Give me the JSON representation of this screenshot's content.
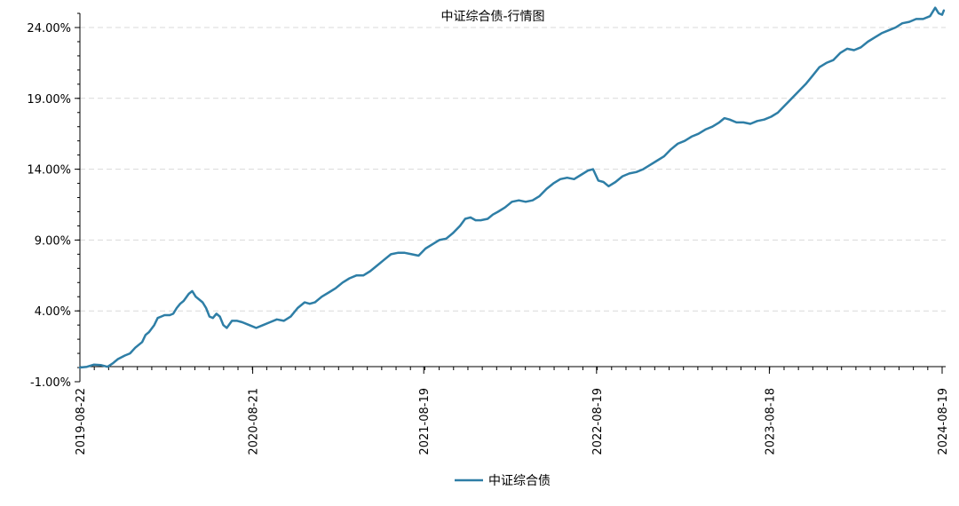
{
  "chart_data": {
    "type": "line",
    "title": "中证综合债-行情图",
    "xlabel": "",
    "ylabel": "",
    "ylim": [
      -1,
      25.5
    ],
    "y_ticks": [
      {
        "value": -1,
        "label": "-1.00%"
      },
      {
        "value": 4,
        "label": "4.00%"
      },
      {
        "value": 9,
        "label": "9.00%"
      },
      {
        "value": 14,
        "label": "14.00%"
      },
      {
        "value": 19,
        "label": "19.00%"
      },
      {
        "value": 24,
        "label": "24.00%"
      }
    ],
    "x_ticks": [
      {
        "value": 2019.64,
        "label": "2019-08-22"
      },
      {
        "value": 2020.64,
        "label": "2020-08-21"
      },
      {
        "value": 2021.63,
        "label": "2021-08-19"
      },
      {
        "value": 2022.63,
        "label": "2022-08-19"
      },
      {
        "value": 2023.63,
        "label": "2023-08-18"
      },
      {
        "value": 2024.63,
        "label": "2024-08-19"
      }
    ],
    "grid": {
      "y": true,
      "x": false
    },
    "legend": {
      "position": "bottom-center"
    },
    "series": [
      {
        "name": "中证综合债",
        "color": "#2e7ea6",
        "points": [
          [
            2019.64,
            0.0
          ],
          [
            2019.68,
            0.05
          ],
          [
            2019.72,
            0.2
          ],
          [
            2019.76,
            0.18
          ],
          [
            2019.8,
            0.05
          ],
          [
            2019.83,
            0.3
          ],
          [
            2019.86,
            0.6
          ],
          [
            2019.9,
            0.85
          ],
          [
            2019.93,
            1.0
          ],
          [
            2019.96,
            1.4
          ],
          [
            2020.0,
            1.8
          ],
          [
            2020.02,
            2.3
          ],
          [
            2020.04,
            2.5
          ],
          [
            2020.07,
            3.0
          ],
          [
            2020.09,
            3.5
          ],
          [
            2020.11,
            3.6
          ],
          [
            2020.13,
            3.7
          ],
          [
            2020.16,
            3.7
          ],
          [
            2020.18,
            3.8
          ],
          [
            2020.2,
            4.2
          ],
          [
            2020.22,
            4.5
          ],
          [
            2020.24,
            4.7
          ],
          [
            2020.27,
            5.2
          ],
          [
            2020.29,
            5.4
          ],
          [
            2020.31,
            5.0
          ],
          [
            2020.33,
            4.8
          ],
          [
            2020.35,
            4.6
          ],
          [
            2020.37,
            4.2
          ],
          [
            2020.39,
            3.6
          ],
          [
            2020.41,
            3.5
          ],
          [
            2020.43,
            3.8
          ],
          [
            2020.45,
            3.6
          ],
          [
            2020.47,
            3.0
          ],
          [
            2020.49,
            2.8
          ],
          [
            2020.52,
            3.3
          ],
          [
            2020.55,
            3.3
          ],
          [
            2020.58,
            3.2
          ],
          [
            2020.62,
            3.0
          ],
          [
            2020.66,
            2.8
          ],
          [
            2020.7,
            3.0
          ],
          [
            2020.74,
            3.2
          ],
          [
            2020.78,
            3.4
          ],
          [
            2020.82,
            3.3
          ],
          [
            2020.86,
            3.6
          ],
          [
            2020.9,
            4.2
          ],
          [
            2020.94,
            4.6
          ],
          [
            2020.97,
            4.5
          ],
          [
            2021.0,
            4.6
          ],
          [
            2021.04,
            5.0
          ],
          [
            2021.08,
            5.3
          ],
          [
            2021.12,
            5.6
          ],
          [
            2021.16,
            6.0
          ],
          [
            2021.2,
            6.3
          ],
          [
            2021.24,
            6.5
          ],
          [
            2021.28,
            6.5
          ],
          [
            2021.32,
            6.8
          ],
          [
            2021.36,
            7.2
          ],
          [
            2021.4,
            7.6
          ],
          [
            2021.44,
            8.0
          ],
          [
            2021.48,
            8.1
          ],
          [
            2021.52,
            8.1
          ],
          [
            2021.56,
            8.0
          ],
          [
            2021.6,
            7.9
          ],
          [
            2021.64,
            8.4
          ],
          [
            2021.68,
            8.7
          ],
          [
            2021.72,
            9.0
          ],
          [
            2021.76,
            9.1
          ],
          [
            2021.8,
            9.5
          ],
          [
            2021.84,
            10.0
          ],
          [
            2021.87,
            10.5
          ],
          [
            2021.9,
            10.6
          ],
          [
            2021.93,
            10.4
          ],
          [
            2021.96,
            10.4
          ],
          [
            2022.0,
            10.5
          ],
          [
            2022.03,
            10.8
          ],
          [
            2022.06,
            11.0
          ],
          [
            2022.1,
            11.3
          ],
          [
            2022.14,
            11.7
          ],
          [
            2022.18,
            11.8
          ],
          [
            2022.22,
            11.7
          ],
          [
            2022.26,
            11.8
          ],
          [
            2022.3,
            12.1
          ],
          [
            2022.34,
            12.6
          ],
          [
            2022.38,
            13.0
          ],
          [
            2022.42,
            13.3
          ],
          [
            2022.46,
            13.4
          ],
          [
            2022.5,
            13.3
          ],
          [
            2022.54,
            13.6
          ],
          [
            2022.58,
            13.9
          ],
          [
            2022.61,
            14.0
          ],
          [
            2022.64,
            13.2
          ],
          [
            2022.67,
            13.1
          ],
          [
            2022.7,
            12.8
          ],
          [
            2022.74,
            13.1
          ],
          [
            2022.78,
            13.5
          ],
          [
            2022.82,
            13.7
          ],
          [
            2022.86,
            13.8
          ],
          [
            2022.9,
            14.0
          ],
          [
            2022.94,
            14.3
          ],
          [
            2022.98,
            14.6
          ],
          [
            2023.02,
            14.9
          ],
          [
            2023.06,
            15.4
          ],
          [
            2023.1,
            15.8
          ],
          [
            2023.14,
            16.0
          ],
          [
            2023.18,
            16.3
          ],
          [
            2023.22,
            16.5
          ],
          [
            2023.26,
            16.8
          ],
          [
            2023.3,
            17.0
          ],
          [
            2023.34,
            17.3
          ],
          [
            2023.37,
            17.6
          ],
          [
            2023.4,
            17.5
          ],
          [
            2023.44,
            17.3
          ],
          [
            2023.48,
            17.3
          ],
          [
            2023.52,
            17.2
          ],
          [
            2023.56,
            17.4
          ],
          [
            2023.6,
            17.5
          ],
          [
            2023.64,
            17.7
          ],
          [
            2023.68,
            18.0
          ],
          [
            2023.72,
            18.5
          ],
          [
            2023.76,
            19.0
          ],
          [
            2023.8,
            19.5
          ],
          [
            2023.84,
            20.0
          ],
          [
            2023.88,
            20.6
          ],
          [
            2023.92,
            21.2
          ],
          [
            2023.96,
            21.5
          ],
          [
            2024.0,
            21.7
          ],
          [
            2024.04,
            22.2
          ],
          [
            2024.08,
            22.5
          ],
          [
            2024.12,
            22.4
          ],
          [
            2024.16,
            22.6
          ],
          [
            2024.2,
            23.0
          ],
          [
            2024.24,
            23.3
          ],
          [
            2024.28,
            23.6
          ],
          [
            2024.32,
            23.8
          ],
          [
            2024.36,
            24.0
          ],
          [
            2024.4,
            24.3
          ],
          [
            2024.44,
            24.4
          ],
          [
            2024.48,
            24.6
          ],
          [
            2024.52,
            24.6
          ],
          [
            2024.56,
            24.8
          ],
          [
            2024.59,
            25.4
          ],
          [
            2024.61,
            25.0
          ],
          [
            2024.63,
            24.9
          ],
          [
            2024.64,
            25.2
          ]
        ]
      }
    ]
  }
}
